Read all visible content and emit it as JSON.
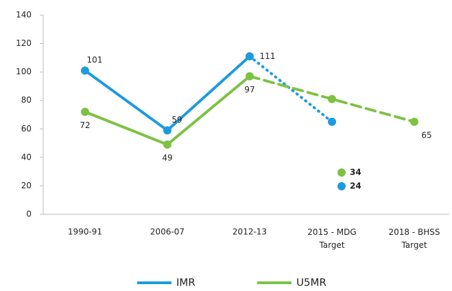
{
  "chart_data": {
    "type": "line",
    "categories": [
      "1990-91",
      "2006-07",
      "2012-13",
      "2015 - MDG Target",
      "2018 - BHSS Target"
    ],
    "projected": [
      false,
      false,
      false,
      true,
      true
    ],
    "series": [
      {
        "name": "IMR",
        "color": "#1c9be0",
        "projection_style": "dotted",
        "values": [
          101,
          59,
          111,
          65,
          null
        ],
        "labeled": [
          true,
          true,
          true,
          false,
          false
        ]
      },
      {
        "name": "U5MR",
        "color": "#7dc243",
        "projection_style": "dashed",
        "values": [
          72,
          49,
          97,
          81,
          65
        ],
        "labeled": [
          true,
          true,
          true,
          false,
          true
        ]
      }
    ],
    "annotations": [
      {
        "label": "34",
        "color": "#7dc243"
      },
      {
        "label": "24",
        "color": "#1c9be0"
      }
    ],
    "ylim": [
      0,
      140
    ],
    "yticks": [
      0,
      20,
      40,
      60,
      80,
      100,
      120,
      140
    ],
    "grid": false
  }
}
